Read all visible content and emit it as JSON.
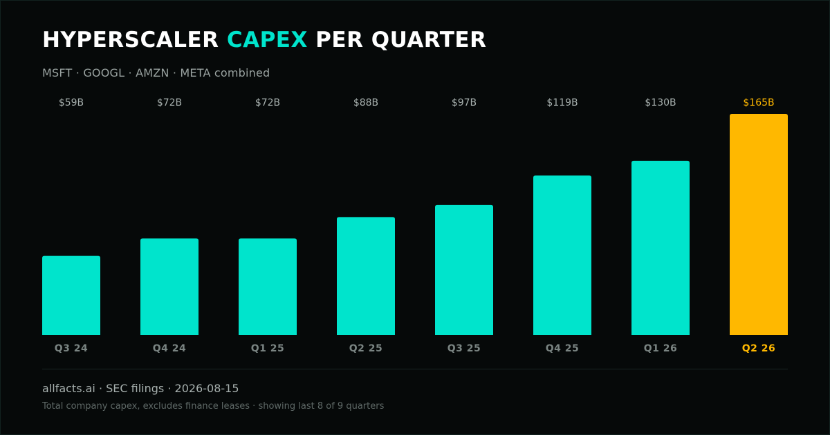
{
  "header": {
    "title_part1": "HYPERSCALER ",
    "title_accent": "CAPEX",
    "title_part2": " PER QUARTER",
    "subtitle": "MSFT · GOOGL · AMZN · META combined"
  },
  "footer": {
    "source": "allfacts.ai · SEC filings · 2026-08-15",
    "note": "Total company capex, excludes finance leases · showing last 8 of 9 quarters"
  },
  "colors": {
    "background": "#060909",
    "bar": "#00e4cc",
    "highlight": "#ffb800",
    "accent": "#00e4cc",
    "value_label": "#a7b0ae",
    "category_label": "#7a8482"
  },
  "chart_data": {
    "type": "bar",
    "title": "HYPERSCALER CAPEX PER QUARTER",
    "subtitle": "MSFT · GOOGL · AMZN · META combined",
    "xlabel": "",
    "ylabel": "",
    "unit": "$B",
    "categories": [
      "Q3 24",
      "Q4 24",
      "Q1 25",
      "Q2 25",
      "Q3 25",
      "Q4 25",
      "Q1 26",
      "Q2 26"
    ],
    "values": [
      59,
      72,
      72,
      88,
      97,
      119,
      130,
      165
    ],
    "value_labels": [
      "$59B",
      "$72B",
      "$72B",
      "$88B",
      "$97B",
      "$119B",
      "$130B",
      "$165B"
    ],
    "highlight_index": 7,
    "ylim": [
      0,
      165
    ],
    "grid": false,
    "legend": "none"
  }
}
